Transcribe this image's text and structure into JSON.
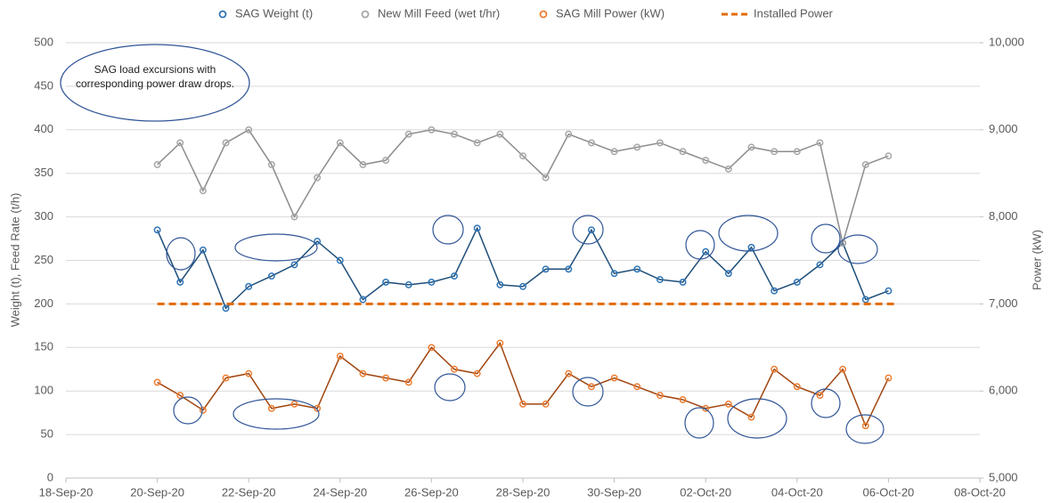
{
  "chart_data": {
    "type": "line",
    "y_label": "Weight (t), Feed Rate (t/h)",
    "y2_label": "Power (kW)",
    "annotation": "SAG load excursions with corresponding power draw drops.",
    "x": [
      2,
      2.5,
      3,
      3.5,
      4,
      4.5,
      5,
      5.5,
      6,
      6.5,
      7,
      7.5,
      8,
      8.5,
      9,
      9.5,
      10,
      10.5,
      11,
      11.5,
      12,
      12.5,
      13,
      13.5,
      14,
      14.5,
      15,
      15.5,
      16,
      16.5,
      17,
      17.5,
      18
    ],
    "series": [
      {
        "name": "SAG Weight (t)",
        "color": "#2e75b6",
        "line_color": "#1f4e79",
        "marker": true,
        "values": [
          285,
          225,
          262,
          195,
          220,
          232,
          245,
          272,
          250,
          205,
          225,
          222,
          225,
          232,
          287,
          222,
          220,
          240,
          240,
          285,
          235,
          240,
          228,
          225,
          260,
          235,
          265,
          215,
          225,
          245,
          270,
          205,
          215
        ]
      },
      {
        "name": "New Mill Feed (wet t/hr)",
        "color": "#a6a6a6",
        "line_color": "#8c8c8c",
        "marker": true,
        "values": [
          360,
          385,
          330,
          385,
          400,
          360,
          300,
          345,
          385,
          360,
          365,
          395,
          400,
          395,
          385,
          395,
          370,
          345,
          395,
          385,
          375,
          380,
          385,
          375,
          365,
          355,
          380,
          375,
          375,
          385,
          270,
          360,
          370
        ]
      },
      {
        "name": "SAG Mill Power (kW)",
        "color": "#ed7d31",
        "line_color": "#a0450f",
        "marker": true,
        "axis": "y2",
        "values": [
          6100,
          5950,
          5780,
          6150,
          6200,
          5800,
          5850,
          5800,
          6400,
          6200,
          6150,
          6100,
          6500,
          6250,
          6200,
          6550,
          5850,
          5850,
          6200,
          6050,
          6150,
          6050,
          5950,
          5900,
          5800,
          5850,
          5700,
          6250,
          6050,
          5950,
          6250,
          5600,
          6150
        ]
      },
      {
        "name": "Installed Power",
        "color": "#e36c09",
        "dashed": true,
        "marker": false,
        "axis": "y2",
        "x": [
          2,
          18.2
        ],
        "values": [
          7000,
          7000
        ]
      }
    ],
    "xlim": [
      0,
      20
    ],
    "xticks": [
      {
        "value": 0,
        "label": "18-Sep-20"
      },
      {
        "value": 2,
        "label": "20-Sep-20"
      },
      {
        "value": 4,
        "label": "22-Sep-20"
      },
      {
        "value": 6,
        "label": "24-Sep-20"
      },
      {
        "value": 8,
        "label": "26-Sep-20"
      },
      {
        "value": 10,
        "label": "28-Sep-20"
      },
      {
        "value": 12,
        "label": "30-Sep-20"
      },
      {
        "value": 14,
        "label": "02-Oct-20"
      },
      {
        "value": 16,
        "label": "04-Oct-20"
      },
      {
        "value": 18,
        "label": "06-Oct-20"
      },
      {
        "value": 20,
        "label": "08-Oct-20"
      }
    ],
    "ylim": [
      0,
      500
    ],
    "yticks": [
      0,
      50,
      100,
      150,
      200,
      250,
      300,
      350,
      400,
      450,
      500
    ],
    "y2lim": [
      5000,
      10000
    ],
    "y2ticks": [
      {
        "value": 5000,
        "label": "5,000"
      },
      {
        "value": 6000,
        "label": "6,000"
      },
      {
        "value": 7000,
        "label": "7,000"
      },
      {
        "value": 8000,
        "label": "8,000"
      },
      {
        "value": 9000,
        "label": "9,000"
      },
      {
        "value": 10000,
        "label": "10,000"
      }
    ],
    "grid": true
  }
}
